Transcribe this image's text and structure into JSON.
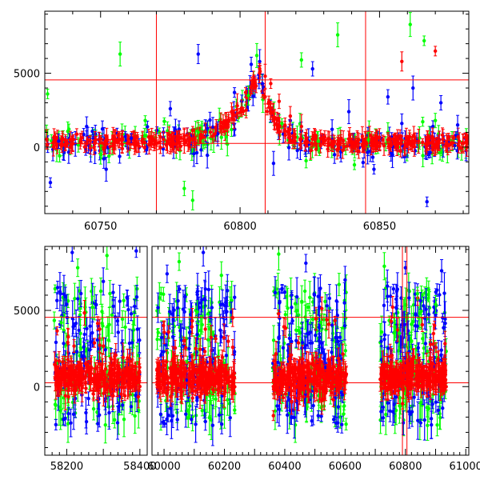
{
  "chart_data": [
    {
      "type": "scatter",
      "title": "",
      "xlabel": "",
      "ylabel": "",
      "xlim": [
        60730,
        60882
      ],
      "ylim": [
        -4500,
        9200
      ],
      "x_ticks": [
        60750,
        60800,
        60850
      ],
      "y_ticks": [
        0,
        5000
      ],
      "error_bars": true,
      "reference_lines": {
        "horizontal": [
          4550,
          250
        ],
        "vertical": [
          60770,
          60809,
          60845
        ]
      },
      "series": [
        {
          "name": "green",
          "color": "#00ff00",
          "x": [
            60731,
            60742,
            60750,
            60757,
            60766,
            60780,
            60783,
            60785,
            60787,
            60795,
            60803,
            60806,
            60815,
            60822,
            60828,
            60835,
            60841,
            60846,
            60853,
            60861,
            60866,
            60870,
            60876
          ],
          "y": [
            3600,
            150,
            -500,
            6300,
            1800,
            -2800,
            -3600,
            1000,
            200,
            700,
            3500,
            6200,
            1600,
            5900,
            400,
            7600,
            -1200,
            500,
            1000,
            8300,
            7200,
            1800,
            400
          ]
        },
        {
          "name": "blue",
          "color": "#0000ff",
          "x": [
            60732,
            60735,
            60745,
            60752,
            60761,
            60775,
            60785,
            60792,
            60798,
            60804,
            60808,
            60812,
            60818,
            60826,
            60833,
            60839,
            60848,
            60853,
            60858,
            60862,
            60867,
            60872,
            60878
          ],
          "y": [
            -2400,
            400,
            1400,
            -1500,
            600,
            2600,
            6300,
            900,
            3700,
            5600,
            4300,
            -1100,
            1800,
            5300,
            1200,
            2400,
            -1500,
            3400,
            1600,
            4000,
            -3700,
            3000,
            1500
          ]
        },
        {
          "name": "red",
          "color": "#ff0000",
          "x": [
            60733,
            60740,
            60748,
            60755,
            60762,
            60768,
            60774,
            60780,
            60786,
            60791,
            60795,
            60799,
            60802,
            60805,
            60807,
            60809,
            60811,
            60814,
            60818,
            60822,
            60827,
            60832,
            60837,
            60842,
            60848,
            60853,
            60858,
            60864,
            60870,
            60876,
            60880
          ],
          "y": [
            300,
            250,
            400,
            350,
            200,
            300,
            250,
            400,
            600,
            900,
            1700,
            2800,
            3700,
            4400,
            5000,
            4800,
            4300,
            3100,
            2100,
            1400,
            800,
            550,
            450,
            300,
            350,
            500,
            5800,
            400,
            6500,
            300,
            250
          ]
        }
      ]
    },
    {
      "type": "scatter",
      "title": "",
      "xlabel": "",
      "ylabel": "",
      "ylim": [
        -4500,
        9200
      ],
      "y_ticks": [
        0,
        5000
      ],
      "error_bars": true,
      "reference_lines": {
        "horizontal": [
          4550,
          250
        ],
        "vertical": [
          60790,
          60805
        ]
      },
      "segments": [
        {
          "xlim": [
            58140,
            58420
          ],
          "x_ticks": [
            58200,
            58400
          ],
          "x_tick_labels": [
            "58200",
            "58400"
          ],
          "data_range": [
            58165,
            58400
          ]
        },
        {
          "xlim": [
            59960,
            61010
          ],
          "x_ticks": [
            60000,
            60200,
            60400,
            60600,
            60800,
            61000
          ],
          "x_tick_labels": [
            "60000",
            "60200",
            "60400",
            "60600",
            "60800",
            "61000"
          ],
          "data_range": [
            [
              59975,
              60235
            ],
            [
              60360,
              60605
            ],
            [
              60715,
              60935
            ]
          ]
        }
      ],
      "series": [
        {
          "name": "green",
          "color": "#00ff00",
          "x": [
            58185,
            58230,
            58270,
            58310,
            58360,
            59990,
            60050,
            60110,
            60190,
            60380,
            60440,
            60520,
            60580,
            60730,
            60780,
            60840,
            60900
          ],
          "y": [
            4200,
            7800,
            5200,
            8600,
            3900,
            6100,
            8200,
            4900,
            7300,
            8700,
            5000,
            4200,
            6700,
            7900,
            3500,
            6100,
            5400
          ]
        },
        {
          "name": "blue",
          "color": "#0000ff",
          "x": [
            58175,
            58215,
            58255,
            58300,
            58345,
            58390,
            60010,
            60070,
            60130,
            60210,
            60400,
            60470,
            60540,
            60600,
            60740,
            60800,
            60860,
            60920
          ],
          "y": [
            6500,
            8800,
            3800,
            6900,
            5600,
            8900,
            7400,
            5900,
            8800,
            6300,
            6200,
            8100,
            5300,
            7000,
            6600,
            7800,
            5300,
            7600
          ]
        },
        {
          "name": "red",
          "color": "#ff0000",
          "x": [
            58180,
            58240,
            58290,
            58330,
            58380,
            60000,
            60060,
            60120,
            60180,
            60230,
            60370,
            60430,
            60490,
            60550,
            60600,
            60720,
            60760,
            60810,
            60870,
            60930
          ],
          "y": [
            600,
            800,
            1500,
            900,
            700,
            500,
            700,
            900,
            1100,
            600,
            700,
            1300,
            1500,
            900,
            600,
            500,
            800,
            1500,
            1300,
            700
          ]
        }
      ]
    }
  ]
}
